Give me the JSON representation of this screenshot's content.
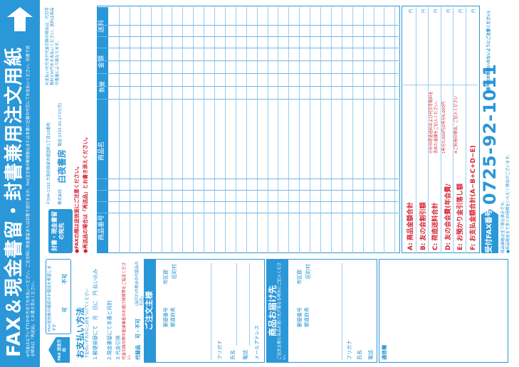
{
  "title": {
    "main": "FAX＆現金書留・封書兼用注文用紙",
    "note": "※代金は以下いずれかの方法でお支払いください。ご注文時に現金書留または封書で送付するか、FAX注文後の郵便振込または本書に記載の代引にてお支払いください。封書で送る場合は「再送品」とお書き添えください。"
  },
  "fax_number": {
    "label": "受付FAX番号",
    "number": "0725-92-1011",
    "note": "(番号はお間違いのないようにご注意ください)"
  },
  "arrow": {
    "icon": "arrow-right-icon"
  },
  "address": {
    "label": "封書・現金書留の宛先",
    "text": "〒594-1192 大阪府和泉市唐国町1丁目10番地",
    "company_prefix": "株式会社",
    "company": "白夜書房",
    "tel": "電話 0725-92-2737(代)"
  },
  "payment_note": "お支払いの方法が代金引換の場合は、代引手数料330円をお支払いください。送料は商品の重量により異なります。",
  "warnings": [
    "●FAXの際は送信面にご注意ください。",
    "●再送品の場合は「再送品」とお書き添えください。"
  ],
  "left": {
    "direction": "FAX 送信方向",
    "fax_confirm": "FAX送信後の確認のお電話を希望しますか",
    "fax_yes": "可",
    "fax_no": "不可",
    "payment_title": "お支払い方法",
    "payment_sub": "下記のいずれかに○印をつけてください",
    "methods": [
      "1.郵便振替にて　月　日に　円 払い込み",
      "2.現金書留にて本書と同封",
      "3.代金引換"
    ],
    "cod_note": "代金引換の際の配達業者のお届け時間帯をご指定ください。",
    "proxy": "代替品",
    "proxy_value": "可・不可",
    "proxy_note": "(品切れの場合の代替品の可否)",
    "orderer_title": "ご注文主様",
    "postal": "郵便番号",
    "pref": "都道府県",
    "city": "市区郡",
    "town": "区町村",
    "furigana": "フリガナ",
    "name": "氏名",
    "phone": "電話",
    "mail": "メールアドレス",
    "dest_title": "商品お届け先",
    "dest_sub": "ご注文主様と商品お届け先が異なる場合にご記入ください。",
    "comm": "通信欄"
  },
  "table": {
    "headers": [
      "商品番号",
      "商品名",
      "数量",
      "金額",
      "送料"
    ],
    "row_count": 28
  },
  "totals": [
    {
      "label": "A: 商品金額合計",
      "note": "",
      "unit": "円"
    },
    {
      "label": "B: 友の会割引額",
      "note": "",
      "unit": "円"
    },
    {
      "label": "C: 荷造送料合計",
      "note": "小計の荷造送料および代引手数料を含めた金額をご記入ください。",
      "unit": "円"
    },
    {
      "label": "D: 友の会会費(年会費/",
      "note": "1年分3,000円/2年分6,000円",
      "unit": "円"
    },
    {
      "label": "E: お預かり金引落し額",
      "note": "※ご利用の場合、ご記入ください",
      "unit": "円"
    },
    {
      "label": "F: お支払金額合計(A−B+C+D−E)",
      "note": "",
      "unit": "円"
    }
  ],
  "bottom_note": "商品価格は全て税込表示です。\n●商品発送まで多少お時間をいただく場合がございます。"
}
